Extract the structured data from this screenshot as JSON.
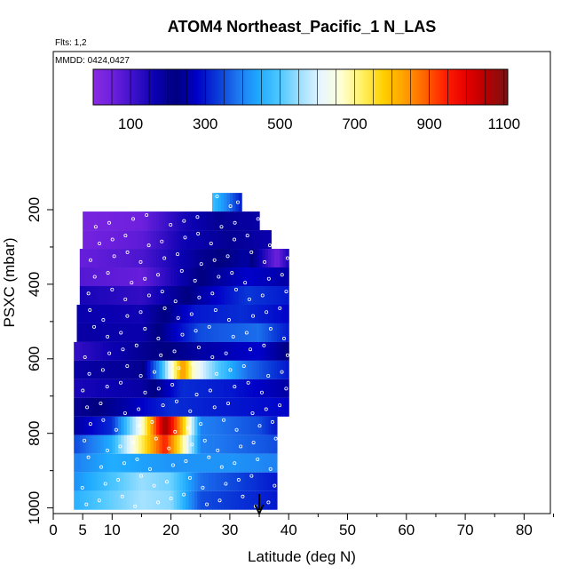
{
  "chart_data": {
    "type": "heatmap",
    "title": "ATOM4 Northeast_Pacific_1 N_LAS",
    "annotations": [
      "Flts: 1,2",
      "MMDD: 0424,0427"
    ],
    "xlabel": "Latitude (deg N)",
    "ylabel": "PSXC (mbar)",
    "xlim": [
      0,
      85
    ],
    "ylim": [
      1010,
      0
    ],
    "x_ticks": [
      0,
      5,
      10,
      20,
      30,
      40,
      50,
      60,
      70,
      80
    ],
    "y_ticks": [
      200,
      400,
      600,
      800,
      1000
    ],
    "colorbar": {
      "range": [
        0,
        1110
      ],
      "ticks": [
        100,
        300,
        500,
        700,
        900,
        1100
      ],
      "colors": [
        "#8a2be2",
        "#6a1fdc",
        "#3a10c8",
        "#0a00b0",
        "#000080",
        "#0000c8",
        "#0a3ad8",
        "#1e78f0",
        "#1eaaff",
        "#50c8ff",
        "#a0e0ff",
        "#e8f6ff",
        "#ffffd0",
        "#fff060",
        "#ffd000",
        "#ffa000",
        "#ff6400",
        "#ff1e00",
        "#e60000",
        "#b40000",
        "#781414"
      ]
    },
    "marker_latitude": 35,
    "rows": [
      {
        "p": 180,
        "lat_range": [
          27,
          32
        ],
        "value_profile": [
          [
            27,
            480
          ],
          [
            29,
            420
          ],
          [
            32,
            300
          ]
        ]
      },
      {
        "p": 230,
        "lat_range": [
          5,
          35
        ],
        "value_profile": [
          [
            5,
            30
          ],
          [
            15,
            50
          ],
          [
            22,
            150
          ],
          [
            28,
            200
          ],
          [
            35,
            180
          ]
        ]
      },
      {
        "p": 280,
        "lat_range": [
          5,
          37
        ],
        "value_profile": [
          [
            5,
            40
          ],
          [
            15,
            70
          ],
          [
            22,
            160
          ],
          [
            30,
            200
          ],
          [
            37,
            170
          ]
        ]
      },
      {
        "p": 330,
        "lat_range": [
          4.5,
          40
        ],
        "value_profile": [
          [
            5,
            60
          ],
          [
            15,
            90
          ],
          [
            25,
            200
          ],
          [
            33,
            250
          ],
          [
            38,
            50
          ],
          [
            40,
            150
          ]
        ]
      },
      {
        "p": 380,
        "lat_range": [
          4.5,
          40
        ],
        "value_profile": [
          [
            5,
            80
          ],
          [
            15,
            60
          ],
          [
            25,
            220
          ],
          [
            33,
            280
          ],
          [
            40,
            250
          ]
        ]
      },
      {
        "p": 430,
        "lat_range": [
          4.5,
          40
        ],
        "value_profile": [
          [
            5,
            150
          ],
          [
            15,
            120
          ],
          [
            25,
            250
          ],
          [
            33,
            330
          ],
          [
            40,
            300
          ]
        ]
      },
      {
        "p": 480,
        "lat_range": [
          4,
          40
        ],
        "value_profile": [
          [
            5,
            170
          ],
          [
            15,
            160
          ],
          [
            24,
            300
          ],
          [
            32,
            320
          ],
          [
            40,
            280
          ]
        ]
      },
      {
        "p": 530,
        "lat_range": [
          4,
          40
        ],
        "value_profile": [
          [
            5,
            180
          ],
          [
            15,
            170
          ],
          [
            25,
            350
          ],
          [
            35,
            380
          ],
          [
            40,
            300
          ]
        ]
      },
      {
        "p": 580,
        "lat_range": [
          3.5,
          40
        ],
        "value_profile": [
          [
            4,
            120
          ],
          [
            15,
            200
          ],
          [
            25,
            250
          ],
          [
            35,
            280
          ],
          [
            40,
            220
          ]
        ]
      },
      {
        "p": 630,
        "lat_range": [
          3.5,
          40
        ],
        "value_profile": [
          [
            4,
            180
          ],
          [
            15,
            200
          ],
          [
            18,
            420
          ],
          [
            22,
            850
          ],
          [
            24,
            650
          ],
          [
            28,
            500
          ],
          [
            33,
            380
          ],
          [
            40,
            300
          ]
        ]
      },
      {
        "p": 680,
        "lat_range": [
          3.5,
          40
        ],
        "value_profile": [
          [
            4,
            150
          ],
          [
            15,
            180
          ],
          [
            22,
            320
          ],
          [
            30,
            300
          ],
          [
            40,
            250
          ]
        ]
      },
      {
        "p": 730,
        "lat_range": [
          3.5,
          40
        ],
        "value_profile": [
          [
            4,
            200
          ],
          [
            12,
            250
          ],
          [
            20,
            320
          ],
          [
            30,
            300
          ],
          [
            40,
            280
          ]
        ]
      },
      {
        "p": 780,
        "lat_range": [
          3.5,
          38
        ],
        "value_profile": [
          [
            4,
            250
          ],
          [
            10,
            320
          ],
          [
            15,
            650
          ],
          [
            19,
            1080
          ],
          [
            22,
            800
          ],
          [
            25,
            400
          ],
          [
            35,
            350
          ],
          [
            38,
            300
          ]
        ]
      },
      {
        "p": 830,
        "lat_range": [
          3.5,
          38
        ],
        "value_profile": [
          [
            4,
            350
          ],
          [
            10,
            450
          ],
          [
            15,
            720
          ],
          [
            19,
            950
          ],
          [
            22,
            700
          ],
          [
            25,
            400
          ],
          [
            38,
            350
          ]
        ]
      },
      {
        "p": 880,
        "lat_range": [
          3.5,
          38
        ],
        "value_profile": [
          [
            4,
            400
          ],
          [
            10,
            450
          ],
          [
            20,
            420
          ],
          [
            30,
            420
          ],
          [
            38,
            400
          ]
        ]
      },
      {
        "p": 930,
        "lat_range": [
          3.5,
          38
        ],
        "value_profile": [
          [
            4,
            420
          ],
          [
            15,
            550
          ],
          [
            20,
            520
          ],
          [
            25,
            380
          ],
          [
            38,
            300
          ]
        ]
      },
      {
        "p": 980,
        "lat_range": [
          3.5,
          38
        ],
        "value_profile": [
          [
            4,
            460
          ],
          [
            15,
            560
          ],
          [
            20,
            540
          ],
          [
            25,
            350
          ],
          [
            38,
            300
          ]
        ]
      }
    ]
  }
}
